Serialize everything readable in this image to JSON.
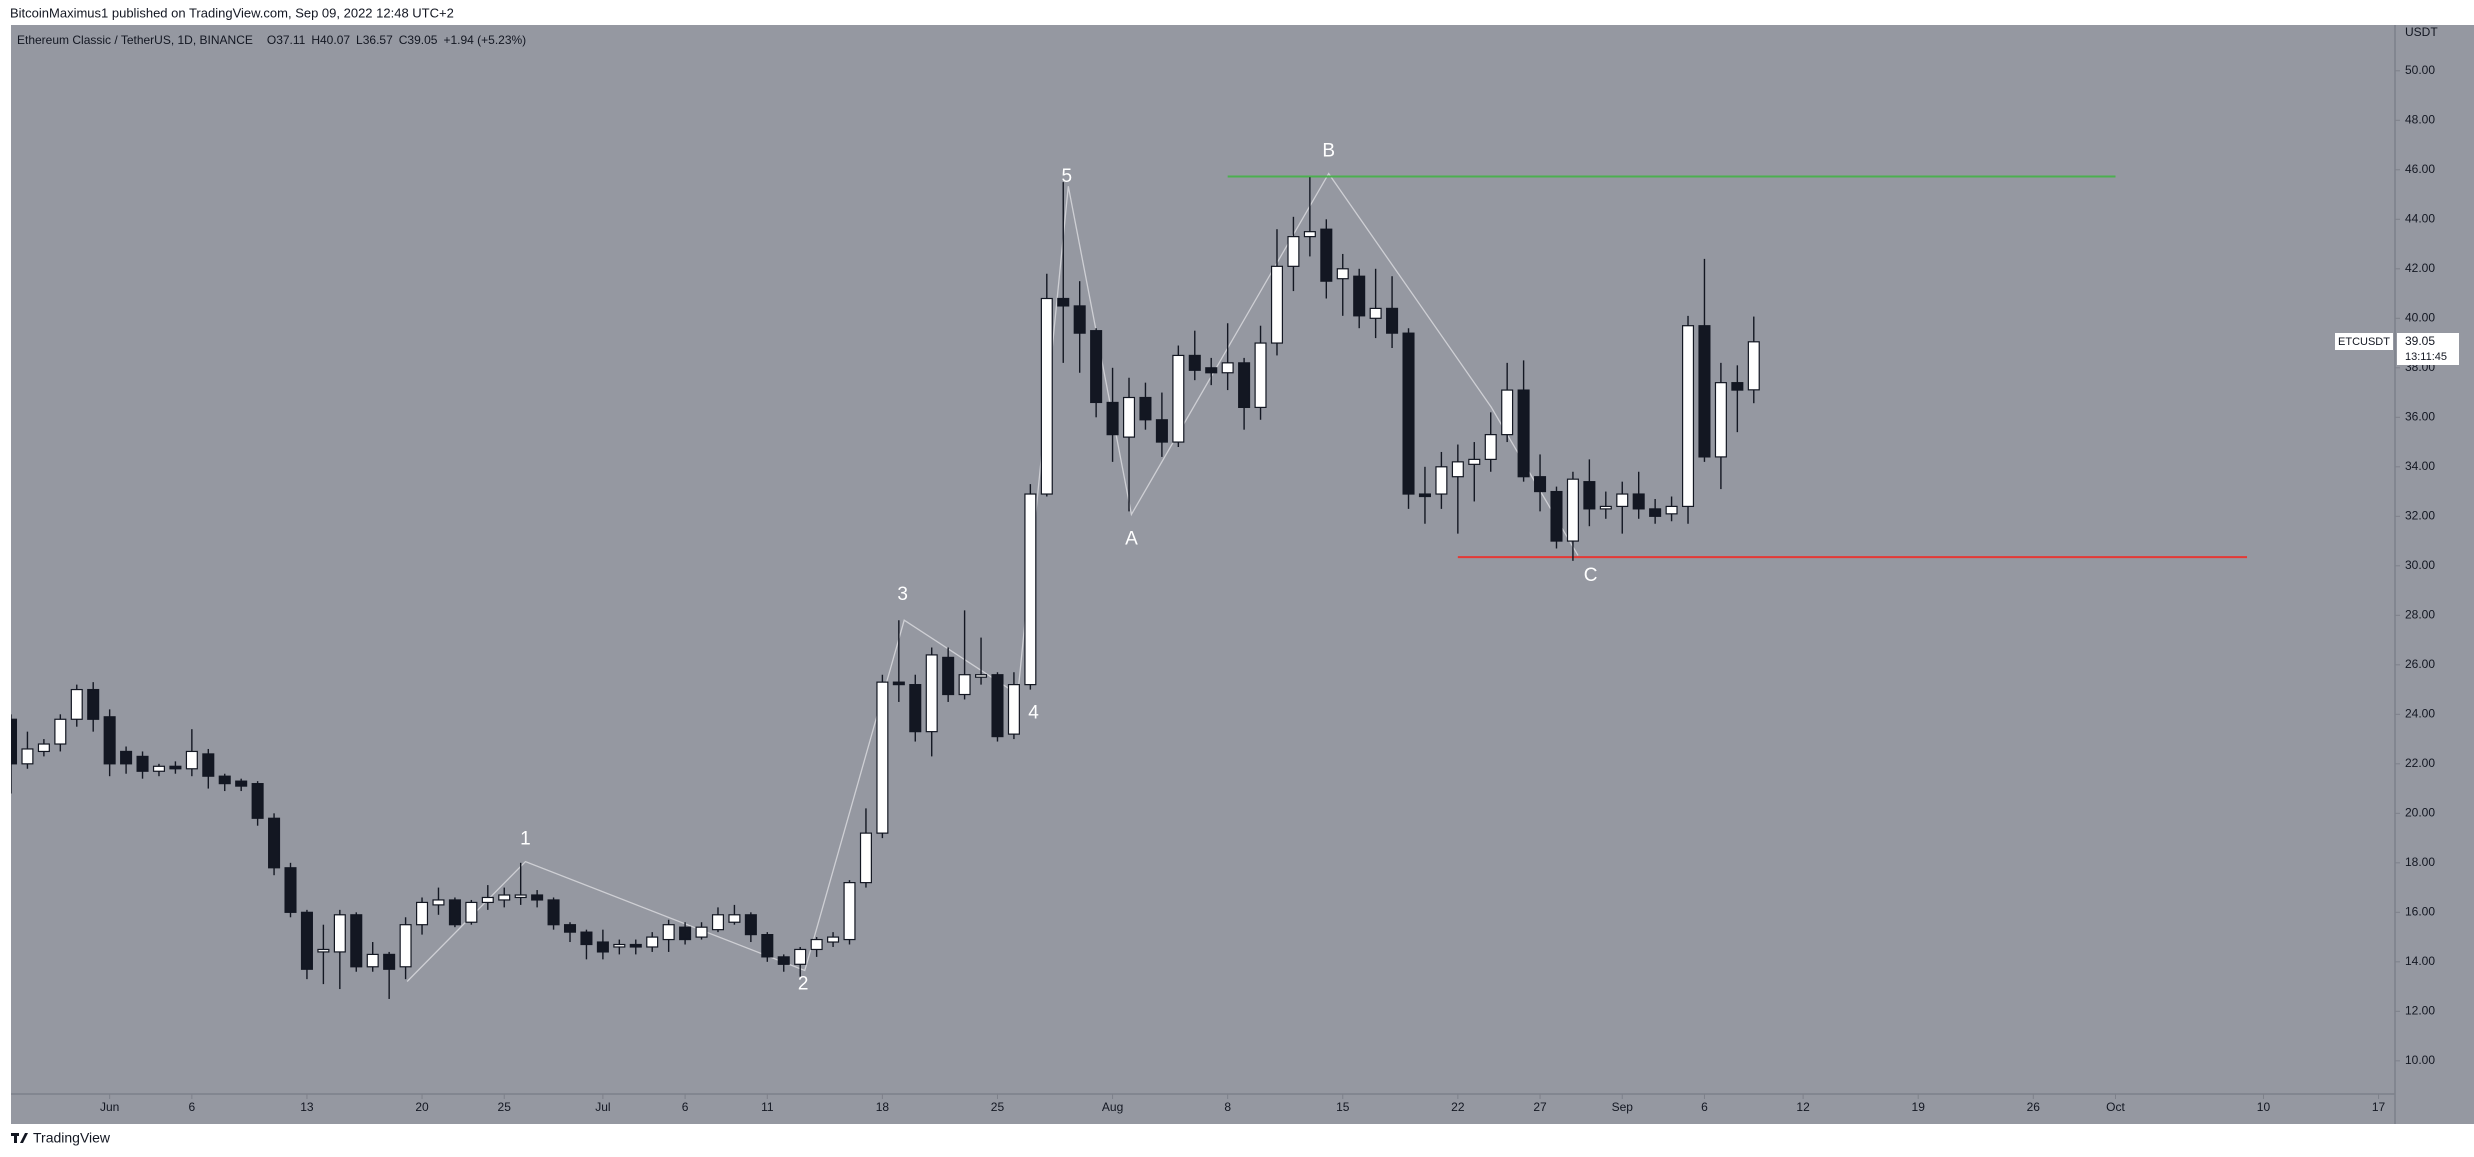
{
  "header": {
    "published": "BitcoinMaximus1 published on TradingView.com, Sep 09, 2022 12:48 UTC+2",
    "footer": "TradingView"
  },
  "chart_data": {
    "type": "candlestick",
    "symbol": "Ethereum Classic / TetherUS, 1D, BINANCE",
    "legend_values": [
      "O37.11",
      "H40.07",
      "L36.57",
      "C39.05",
      "+1.94 (+5.23%)"
    ],
    "ticker": "ETCUSDT",
    "last_price": "39.05",
    "countdown": "13:11:45",
    "y_unit": "USDT",
    "background": "#9598a1",
    "up_color": "#ffffff",
    "down_color": "#131722",
    "x": [
      "2022-05-26",
      "2022-05-27",
      "2022-05-28",
      "2022-05-29",
      "2022-05-30",
      "2022-05-31",
      "2022-06-01",
      "2022-06-02",
      "2022-06-03",
      "2022-06-04",
      "2022-06-05",
      "2022-06-06",
      "2022-06-07",
      "2022-06-08",
      "2022-06-09",
      "2022-06-10",
      "2022-06-11",
      "2022-06-12",
      "2022-06-13",
      "2022-06-14",
      "2022-06-15",
      "2022-06-16",
      "2022-06-17",
      "2022-06-18",
      "2022-06-19",
      "2022-06-20",
      "2022-06-21",
      "2022-06-22",
      "2022-06-23",
      "2022-06-24",
      "2022-06-25",
      "2022-06-26",
      "2022-06-27",
      "2022-06-28",
      "2022-06-29",
      "2022-06-30",
      "2022-07-01",
      "2022-07-02",
      "2022-07-03",
      "2022-07-04",
      "2022-07-05",
      "2022-07-06",
      "2022-07-07",
      "2022-07-08",
      "2022-07-09",
      "2022-07-10",
      "2022-07-11",
      "2022-07-12",
      "2022-07-13",
      "2022-07-14",
      "2022-07-15",
      "2022-07-16",
      "2022-07-17",
      "2022-07-18",
      "2022-07-19",
      "2022-07-20",
      "2022-07-21",
      "2022-07-22",
      "2022-07-23",
      "2022-07-24",
      "2022-07-25",
      "2022-07-26",
      "2022-07-27",
      "2022-07-28",
      "2022-07-29",
      "2022-07-30",
      "2022-07-31",
      "2022-08-01",
      "2022-08-02",
      "2022-08-03",
      "2022-08-04",
      "2022-08-05",
      "2022-08-06",
      "2022-08-07",
      "2022-08-08",
      "2022-08-09",
      "2022-08-10",
      "2022-08-11",
      "2022-08-12",
      "2022-08-13",
      "2022-08-14",
      "2022-08-15",
      "2022-08-16",
      "2022-08-17",
      "2022-08-18",
      "2022-08-19",
      "2022-08-20",
      "2022-08-21",
      "2022-08-22",
      "2022-08-23",
      "2022-08-24",
      "2022-08-25",
      "2022-08-26",
      "2022-08-27",
      "2022-08-28",
      "2022-08-29",
      "2022-08-30",
      "2022-08-31",
      "2022-09-01",
      "2022-09-02",
      "2022-09-03",
      "2022-09-04",
      "2022-09-05",
      "2022-09-06",
      "2022-09-07",
      "2022-09-08",
      "2022-09-09"
    ],
    "open": [
      23.8,
      22.0,
      22.5,
      22.8,
      23.8,
      25.0,
      23.9,
      22.5,
      22.3,
      21.7,
      21.9,
      21.8,
      22.4,
      21.5,
      21.3,
      21.2,
      19.8,
      17.8,
      16.0,
      14.4,
      14.4,
      15.9,
      13.8,
      14.3,
      13.8,
      15.5,
      16.3,
      16.5,
      15.6,
      16.4,
      16.5,
      16.6,
      16.7,
      16.5,
      15.5,
      15.2,
      14.8,
      14.6,
      14.7,
      14.6,
      14.9,
      15.4,
      15.0,
      15.3,
      15.6,
      15.9,
      15.1,
      14.2,
      13.9,
      14.5,
      14.8,
      14.9,
      17.2,
      19.2,
      25.3,
      25.2,
      23.3,
      26.3,
      24.8,
      25.5,
      25.6,
      23.2,
      25.2,
      32.9,
      40.8,
      40.5,
      39.5,
      36.6,
      35.2,
      36.8,
      35.9,
      35.0,
      38.5,
      38.0,
      37.8,
      38.2,
      36.4,
      39.0,
      42.1,
      43.3,
      43.6,
      41.6,
      41.7,
      40.0,
      40.4,
      39.4,
      32.9,
      32.9,
      33.6,
      34.1,
      34.3,
      35.3,
      37.1,
      33.6,
      33.0,
      31.0,
      33.4,
      32.3,
      32.4,
      32.9,
      32.3,
      32.1,
      32.4,
      39.7,
      34.4,
      37.4,
      37.11
    ],
    "high": [
      24.0,
      23.3,
      23.0,
      24.0,
      25.2,
      25.3,
      24.2,
      22.7,
      22.5,
      22.0,
      22.1,
      23.4,
      22.6,
      21.6,
      21.4,
      21.3,
      20.0,
      18.0,
      16.1,
      15.5,
      16.1,
      16.0,
      14.8,
      14.4,
      15.8,
      16.6,
      17.0,
      16.6,
      16.5,
      17.1,
      17.0,
      18.0,
      16.9,
      16.6,
      15.6,
      15.3,
      15.3,
      14.9,
      14.9,
      15.2,
      15.7,
      15.6,
      15.6,
      16.2,
      16.3,
      16.0,
      15.2,
      14.3,
      14.6,
      15.0,
      15.2,
      17.3,
      20.2,
      25.6,
      27.8,
      25.6,
      26.7,
      26.7,
      28.2,
      27.1,
      25.7,
      25.7,
      33.3,
      41.8,
      45.5,
      41.5,
      39.6,
      38.0,
      37.6,
      37.4,
      37.0,
      38.9,
      39.5,
      38.4,
      39.8,
      38.4,
      39.7,
      43.6,
      44.1,
      45.7,
      44.0,
      42.6,
      42.0,
      42.0,
      41.7,
      39.6,
      34.0,
      34.6,
      34.9,
      35.0,
      36.2,
      38.2,
      38.3,
      34.5,
      33.2,
      33.8,
      34.3,
      33.0,
      33.4,
      33.8,
      32.7,
      32.8,
      40.1,
      42.4,
      38.2,
      38.1,
      40.07
    ],
    "low": [
      20.8,
      21.8,
      22.3,
      22.5,
      23.5,
      23.3,
      21.5,
      21.6,
      21.4,
      21.5,
      21.6,
      21.5,
      21.0,
      20.9,
      20.9,
      19.5,
      17.5,
      15.8,
      13.3,
      13.1,
      12.9,
      13.6,
      13.6,
      12.5,
      13.3,
      15.1,
      15.9,
      15.4,
      15.5,
      16.1,
      16.2,
      16.3,
      16.2,
      15.3,
      14.8,
      14.1,
      14.1,
      14.3,
      14.3,
      14.4,
      14.4,
      14.7,
      14.9,
      15.2,
      15.5,
      14.8,
      14.0,
      13.6,
      13.4,
      14.2,
      14.6,
      14.7,
      17.0,
      19.0,
      24.5,
      22.9,
      22.3,
      24.5,
      24.6,
      25.2,
      22.9,
      23.0,
      25.0,
      32.8,
      38.2,
      37.8,
      36.0,
      34.2,
      32.2,
      35.5,
      34.4,
      34.8,
      37.5,
      37.3,
      37.1,
      35.5,
      35.9,
      38.5,
      41.1,
      42.5,
      40.8,
      40.1,
      39.6,
      39.2,
      38.8,
      32.3,
      31.7,
      32.3,
      31.3,
      32.6,
      33.8,
      35.0,
      33.4,
      32.2,
      30.7,
      30.2,
      31.6,
      31.9,
      31.3,
      31.9,
      31.7,
      31.8,
      31.7,
      34.2,
      33.1,
      35.4,
      36.57
    ],
    "close": [
      22.0,
      22.6,
      22.8,
      23.8,
      25.0,
      23.8,
      22.0,
      22.0,
      21.7,
      21.9,
      21.8,
      22.5,
      21.5,
      21.2,
      21.1,
      19.8,
      17.8,
      16.0,
      13.7,
      14.5,
      15.9,
      13.8,
      14.3,
      13.7,
      15.5,
      16.4,
      16.5,
      15.5,
      16.4,
      16.6,
      16.7,
      16.7,
      16.5,
      15.5,
      15.2,
      14.7,
      14.4,
      14.7,
      14.6,
      15.0,
      15.5,
      14.9,
      15.4,
      15.9,
      15.9,
      15.1,
      14.2,
      13.9,
      14.5,
      14.9,
      15.0,
      17.2,
      19.2,
      25.3,
      25.2,
      23.3,
      26.4,
      24.8,
      25.6,
      25.6,
      23.1,
      25.2,
      32.9,
      40.8,
      40.5,
      39.4,
      36.6,
      35.3,
      36.8,
      35.9,
      35.0,
      38.5,
      37.9,
      37.8,
      38.2,
      36.4,
      39.0,
      42.1,
      43.3,
      43.5,
      41.5,
      42.0,
      40.1,
      40.4,
      39.4,
      32.9,
      32.8,
      34.0,
      34.2,
      34.3,
      35.3,
      37.1,
      33.6,
      33.0,
      31.0,
      33.5,
      32.3,
      32.4,
      32.9,
      32.3,
      32.0,
      32.4,
      39.7,
      34.4,
      37.4,
      37.1,
      39.05
    ],
    "levels": [
      {
        "color": "#4caf50",
        "value": 45.73,
        "from": "2022-08-08",
        "to": "2022-10-01"
      },
      {
        "color": "#e53935",
        "value": 30.35,
        "from": "2022-08-22",
        "to": "2022-10-09"
      }
    ],
    "annotations": [
      "1",
      "2",
      "3",
      "4",
      "5",
      "A",
      "B",
      "C"
    ],
    "xlim": [
      "2022-05-26",
      "2022-10-18"
    ],
    "xticks": [
      {
        "value": "2022-06-01",
        "label": "Jun"
      },
      {
        "value": "2022-06-06",
        "label": "6"
      },
      {
        "value": "2022-06-13",
        "label": "13"
      },
      {
        "value": "2022-06-20",
        "label": "20"
      },
      {
        "value": "2022-06-25",
        "label": "25"
      },
      {
        "value": "2022-07-01",
        "label": "Jul"
      },
      {
        "value": "2022-07-06",
        "label": "6"
      },
      {
        "value": "2022-07-11",
        "label": "11"
      },
      {
        "value": "2022-07-18",
        "label": "18"
      },
      {
        "value": "2022-07-25",
        "label": "25"
      },
      {
        "value": "2022-08-01",
        "label": "Aug"
      },
      {
        "value": "2022-08-08",
        "label": "8"
      },
      {
        "value": "2022-08-15",
        "label": "15"
      },
      {
        "value": "2022-08-22",
        "label": "22"
      },
      {
        "value": "2022-08-27",
        "label": "27"
      },
      {
        "value": "2022-09-01",
        "label": "Sep"
      },
      {
        "value": "2022-09-06",
        "label": "6"
      },
      {
        "value": "2022-09-12",
        "label": "12"
      },
      {
        "value": "2022-09-19",
        "label": "19"
      },
      {
        "value": "2022-09-26",
        "label": "26"
      },
      {
        "value": "2022-10-01",
        "label": "Oct"
      },
      {
        "value": "2022-10-10",
        "label": "10"
      },
      {
        "value": "2022-10-17",
        "label": "17"
      }
    ],
    "ylim": [
      8.66,
      51.85
    ],
    "yticks": [
      {
        "value": 10,
        "label": "10.00"
      },
      {
        "value": 12,
        "label": "12.00"
      },
      {
        "value": 14,
        "label": "14.00"
      },
      {
        "value": 16,
        "label": "16.00"
      },
      {
        "value": 18,
        "label": "18.00"
      },
      {
        "value": 20,
        "label": "20.00"
      },
      {
        "value": 22,
        "label": "22.00"
      },
      {
        "value": 24,
        "label": "24.00"
      },
      {
        "value": 26,
        "label": "26.00"
      },
      {
        "value": 28,
        "label": "28.00"
      },
      {
        "value": 30,
        "label": "30.00"
      },
      {
        "value": 32,
        "label": "32.00"
      },
      {
        "value": 34,
        "label": "34.00"
      },
      {
        "value": 36,
        "label": "36.00"
      },
      {
        "value": 38,
        "label": "38.00"
      },
      {
        "value": 40,
        "label": "40.00"
      },
      {
        "value": 42,
        "label": "42.00"
      },
      {
        "value": 44,
        "label": "44.00"
      },
      {
        "value": 46,
        "label": "46.00"
      },
      {
        "value": 48,
        "label": "48.00"
      },
      {
        "value": 50,
        "label": "50.00"
      }
    ],
    "grid": false
  }
}
